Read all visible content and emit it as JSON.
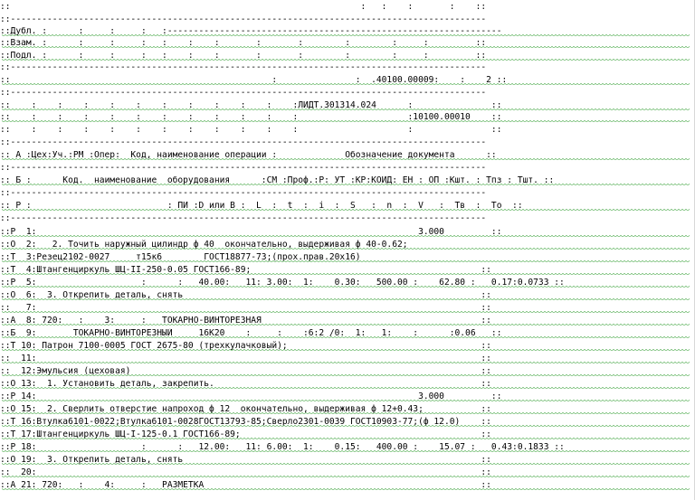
{
  "document": {
    "lines": [
      "::                                                                   :   :    :       :    ::",
      "::-------------------------------------------------------------------------------------------",
      "::Дубл. :      :     :     :   :----------------------------------------------------------------",
      "::Взам. :      :     :     :   :    :    :       :       :        :        :     :         ::",
      "::Подл. :      :     :     :   :    :    :       :       :        :        :     :         ::",
      "::-------------------------------------------------------------------------------------------",
      "::                                                  :               :  .40100.00009:    :    2 ::",
      "::-------------------------------------------------------------------------------------------",
      "::    :    :    :    :    :    :    :    :    :    :    :ЛИДТ.301314.024      :               ::",
      "::    :    :    :    :    :    :    :    :    :    :    :                     :10100.00010    ::",
      "::    :    :    :    :    :    :    :    :    :    :    :                     :               ::",
      "::-------------------------------------------------------------------------------------------",
      ":: A :Цех:Уч.:РМ :Опер:  Код, наименование операции :             Обозначение документа      ::",
      "::-------------------------------------------------------------------------------------------",
      ":: Б :      Код.  наименование  оборудования      :СМ :Проф.:Р: УТ :КР:КОИД: ЕН : ОП :Кшт. : Тпз : Тшт. ::",
      "::-------------------------------------------------------------------------------------------",
      ":: Р :                          : ПИ :D или В :  L  :  t  :  i  :  S   :  n  :  V   :  Тв  :  То  ::",
      "::-------------------------------------------------------------------------------------------",
      "::P  1:                                                                         3.000         ::",
      "::O  2:   2. Точить наружный цилиндр ф 40  окончательно, выдерживая ф 40-0.62;",
      "::T  3:Резец2102-0027     т15к6        ГОСТ18877-73;(прох.прав.20х16)",
      "::T  4:Штангенциркуль ШЦ-II-250-0.05 ГОСТ166-89;                                            ::",
      "::P  5:                    :      :   40.00:   11: 3.00:  1:    0.30:   500.00 :    62.80 :   0.17:0.0733 ::",
      "::O  6:  3. Открепить деталь, снять                                                         ::",
      "::   7:                                                                                     ::",
      "::A  8: 720:   :    3:     :   ТОКАРНО-ВИНТОРЕЗНАЯ                                          ::",
      "::Б  9:       ТОКАРНО-ВИНТОРЕЗНЫЙ     16К20    :     :    :6:2 /0:  1:   1:    :      :0.06   ::",
      "::T 10: Патрон 7100-0005 ГОСТ 2675-80 (трехкулачковый);                                     ::",
      "::  11:                                                                                     ::",
      "::  12:Эмульсия (цеховая)                                                                   ::",
      "::O 13:  1. Установить деталь, закрепить.                                                   ::",
      "::P 14:                                                                         3.000         ::",
      "::O 15:  2. Сверлить отверстие напроход ф 12  окончательно, выдерживая ф 12+0.43;           ::",
      "::T 16:Втулка6101-0022;Втулка6101-0028ГОСТ13793-85;Сверло2301-0039 ГОСТ10903-77;(ф 12.0)    ::",
      "::T 17:Штангенциркуль ШЦ-I-125-0.1 ГОСТ166-89;                                              ::",
      "::P 18:                    :      :   12.00:   11: 6.00:  1:    0.15:   400.00 :    15.07 :   0.43:0.1833 ::",
      "::O 19:  3. Открепить деталь, снять                                                         ::",
      "::  20:                                                                                     ::",
      "::A 21: 720:   :    4:     :   РАЗМЕТКА                                                     ::"
    ]
  }
}
